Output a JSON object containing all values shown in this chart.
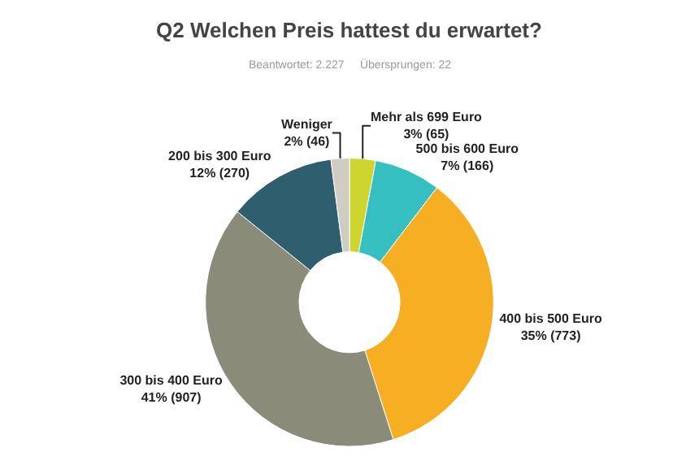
{
  "chart_data": {
    "type": "donut",
    "title": "Q2 Welchen Preis hattest du erwartet?",
    "subtitle": "Beantwortet: 2.227     Übersprungen: 22",
    "categories": [
      "Mehr als 699 Euro",
      "500 bis 600 Euro",
      "400 bis 500 Euro",
      "300 bis 400 Euro",
      "200 bis 300 Euro",
      "Weniger"
    ],
    "values": [
      65,
      166,
      773,
      907,
      270,
      46
    ],
    "value_labels": [
      "3% (65)",
      "7% (166)",
      "35% (773)",
      "41% (907)",
      "12% (270)",
      "2% (46)"
    ],
    "colors": [
      "#cdd52e",
      "#36bfc1",
      "#f6ae22",
      "#8b8b79",
      "#2f5f6e",
      "#cfcdc2"
    ],
    "legend": false
  }
}
